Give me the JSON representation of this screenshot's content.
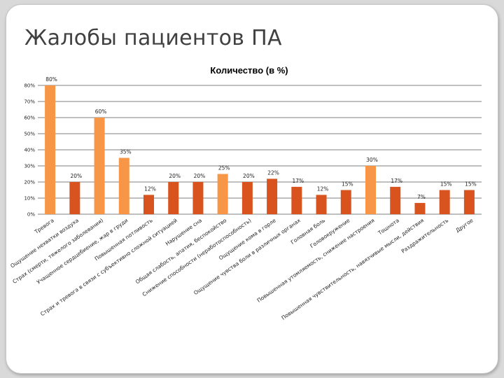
{
  "slide": {
    "title": "Жалобы пациентов ПА"
  },
  "colors": {
    "light_bar": "#f79646",
    "dark_bar": "#d9531e",
    "grid": "#000000"
  },
  "chart_data": {
    "type": "bar",
    "title": "Количество (в %)",
    "ylim": [
      0,
      80
    ],
    "yticks": [
      "0%",
      "10%",
      "20%",
      "30%",
      "40%",
      "50%",
      "60%",
      "70%",
      "80%"
    ],
    "grid": true,
    "categories": [
      "Тревога",
      "Ощущение нехватки воздуха",
      "Страх (смерти, тяжелого заболевания)",
      "Учащенное сердцебиение, жар в груди",
      "Повышенная потливость",
      "Страх и тревога в связи с субъективно сложной ситуацией",
      "Нарушение сна",
      "Общая слабость, апатия, беспокойство",
      "Снижение способности (неработоспособность)",
      "Ощущение кома в горле",
      "Ощущение чувства боли в различных органах",
      "Головная боль",
      "Головокружение",
      "Повышенная утомляемость, снижение настроения",
      "Тошнота",
      "Повышенная чувствительность, навязчивые мысли, действия",
      "Раздражительность",
      "Другое"
    ],
    "values": [
      80,
      20,
      60,
      35,
      12,
      20,
      20,
      25,
      20,
      22,
      17,
      12,
      15,
      30,
      17,
      7,
      15,
      15
    ],
    "value_labels": [
      "80%",
      "20%",
      "60%",
      "35%",
      "12%",
      "20%",
      "20%",
      "25%",
      "20%",
      "22%",
      "17%",
      "12%",
      "15%",
      "30%",
      "17%",
      "7%",
      "15%",
      "15%"
    ],
    "bar_color_keys": [
      "light",
      "dark",
      "light",
      "light",
      "dark",
      "dark",
      "dark",
      "light",
      "dark",
      "dark",
      "dark",
      "dark",
      "dark",
      "light",
      "dark",
      "dark",
      "dark",
      "dark"
    ]
  }
}
